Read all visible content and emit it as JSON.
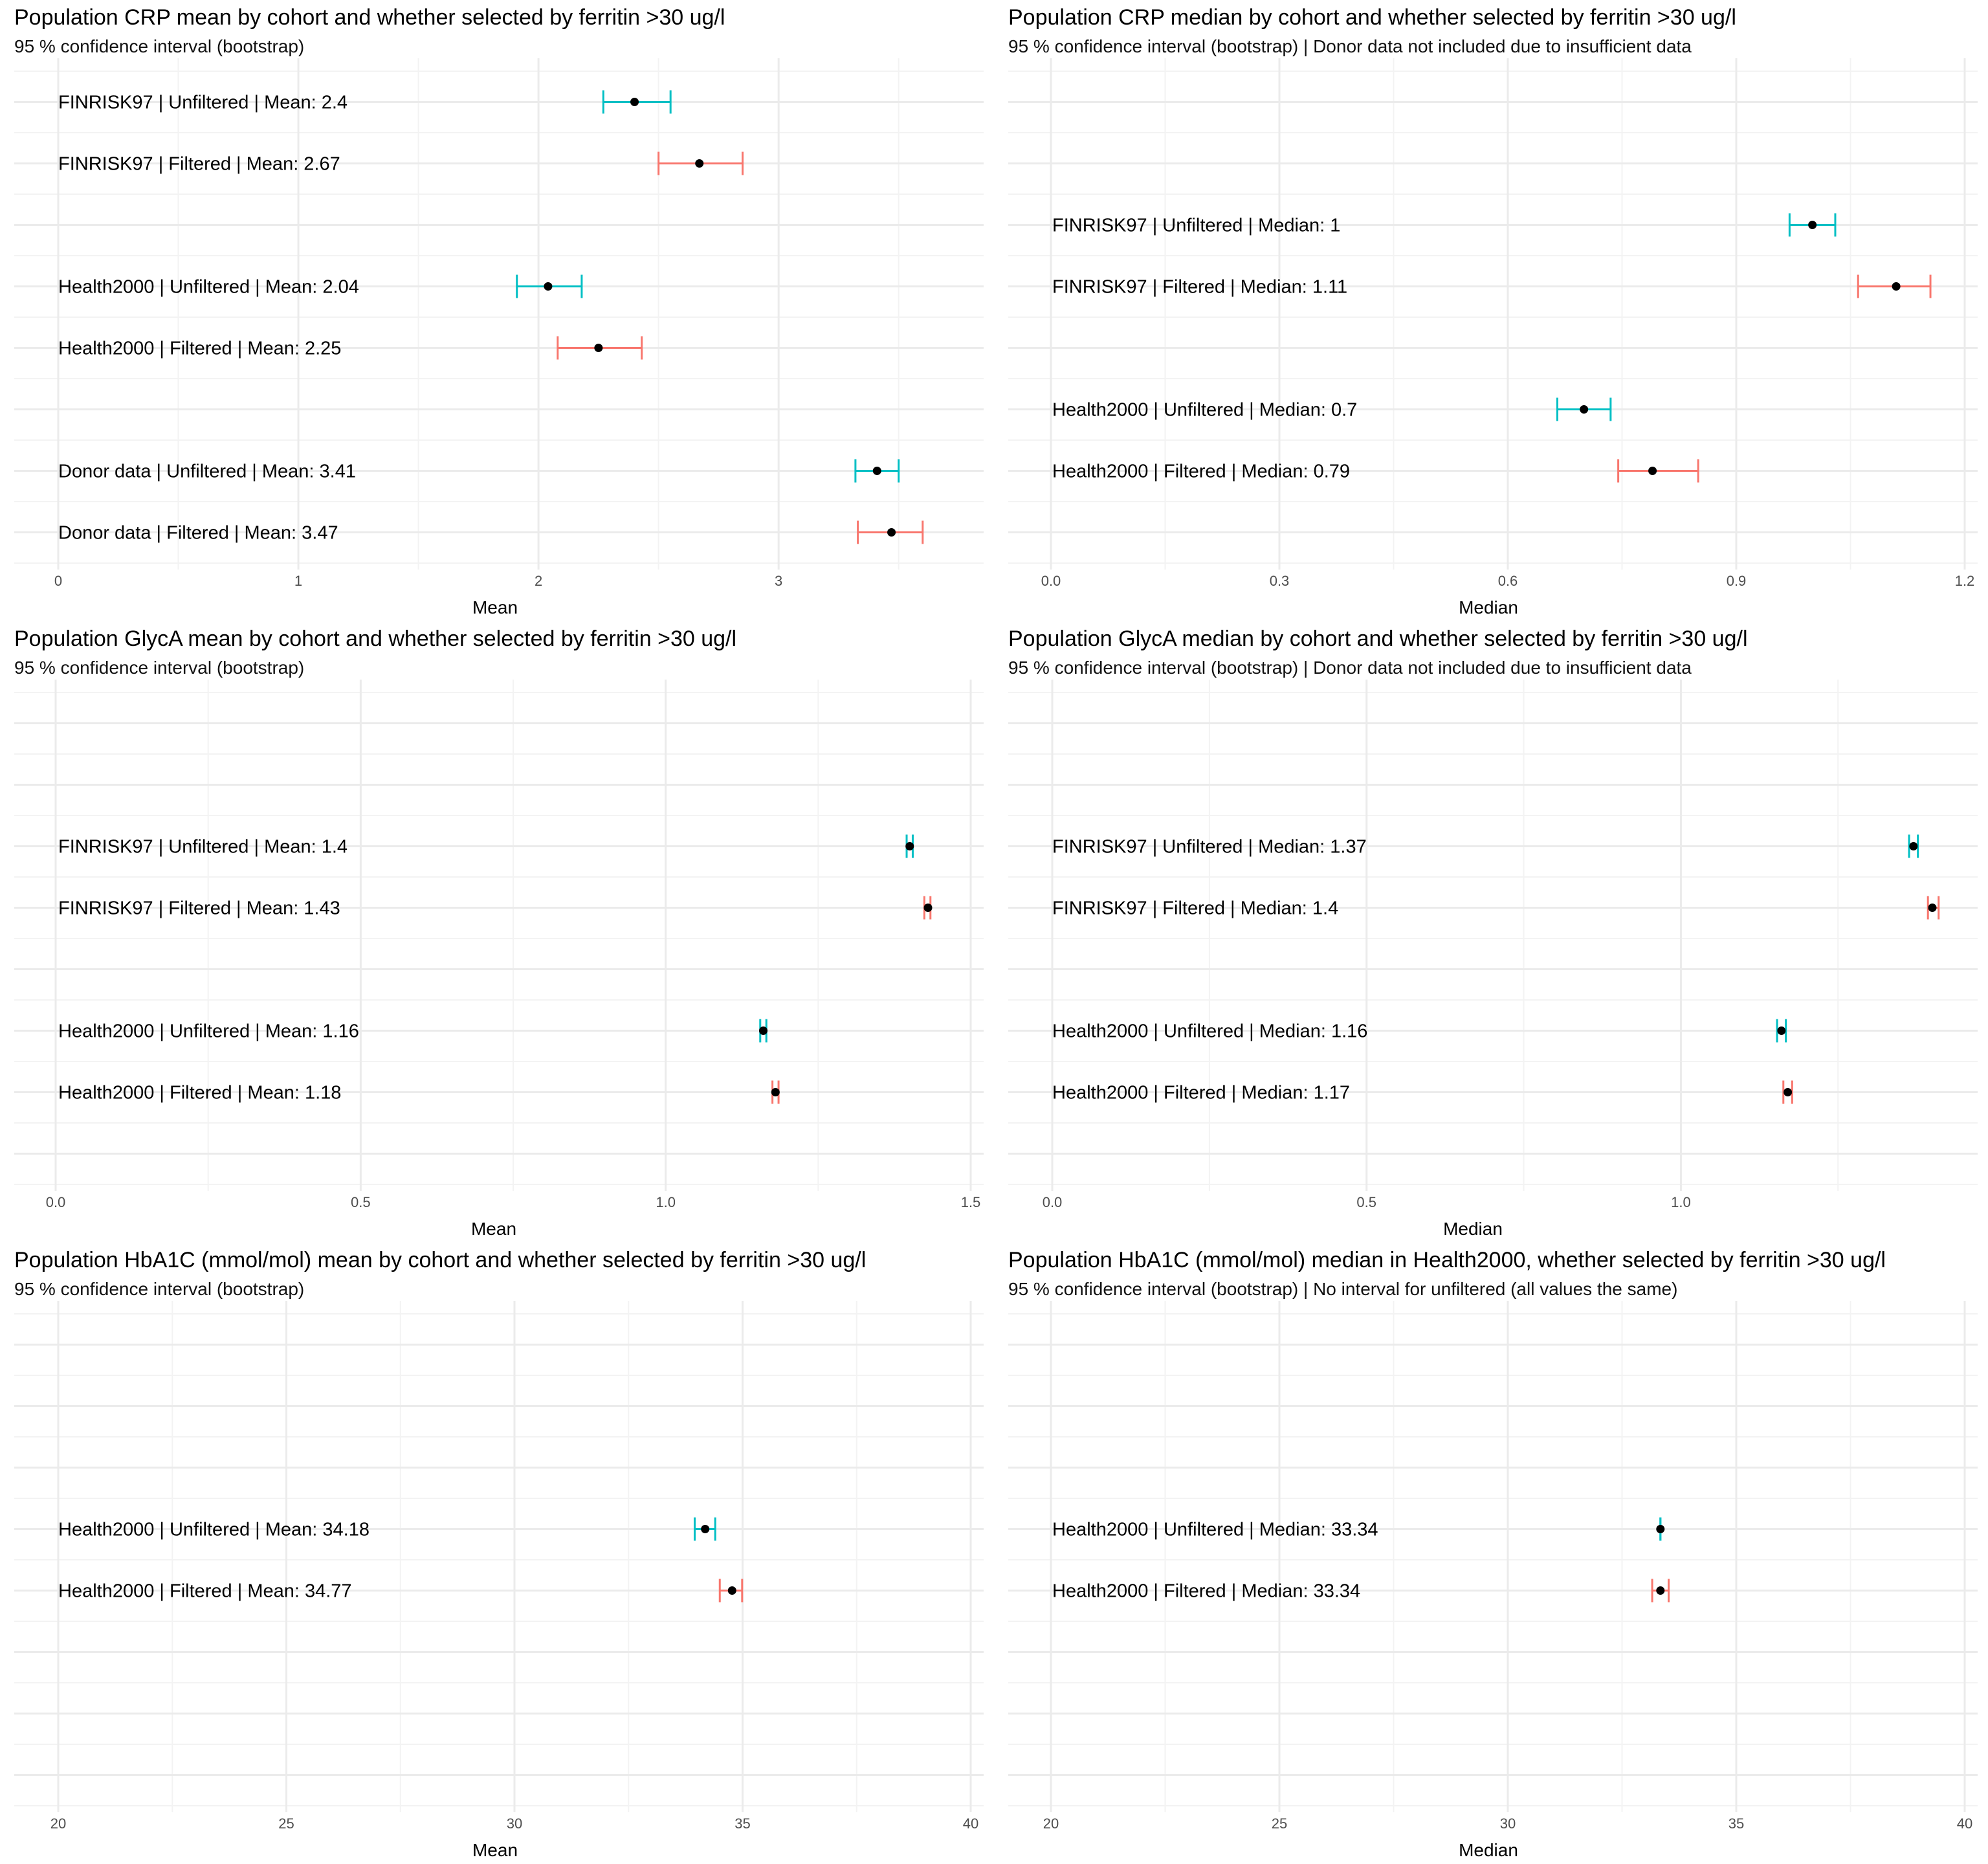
{
  "colors": {
    "unfiltered": "#00BFC4",
    "filtered": "#F8766D",
    "point": "#000000",
    "grid_major": "#EBEBEB",
    "grid_minor": "#F3F3F3"
  },
  "chart_data": [
    {
      "type": "scatter",
      "subtype": "point-range",
      "title": "Population CRP mean by cohort and whether selected by ferritin >30 ug/l",
      "subtitle": "95 % confidence interval (bootstrap)",
      "xlabel": "Mean",
      "xlim": [
        0,
        3.8
      ],
      "xticks": [
        0,
        1,
        2,
        3
      ],
      "xtick_labels": [
        "0",
        "1",
        "2",
        "3"
      ],
      "row_count": 8,
      "points": [
        {
          "row": 1,
          "label": "FINRISK97 | Unfiltered | Mean: 2.4",
          "group": "unfiltered",
          "value": 2.4,
          "low": 2.27,
          "high": 2.55
        },
        {
          "row": 2,
          "label": "FINRISK97 | Filtered | Mean: 2.67",
          "group": "filtered",
          "value": 2.67,
          "low": 2.5,
          "high": 2.85
        },
        {
          "row": 4,
          "label": "Health2000 | Unfiltered | Mean: 2.04",
          "group": "unfiltered",
          "value": 2.04,
          "low": 1.91,
          "high": 2.18
        },
        {
          "row": 5,
          "label": "Health2000 | Filtered | Mean: 2.25",
          "group": "filtered",
          "value": 2.25,
          "low": 2.08,
          "high": 2.43
        },
        {
          "row": 7,
          "label": "Donor data | Unfiltered | Mean: 3.41",
          "group": "unfiltered",
          "value": 3.41,
          "low": 3.32,
          "high": 3.5
        },
        {
          "row": 8,
          "label": "Donor data | Filtered | Mean: 3.47",
          "group": "filtered",
          "value": 3.47,
          "low": 3.33,
          "high": 3.6
        }
      ]
    },
    {
      "type": "scatter",
      "subtype": "point-range",
      "title": "Population CRP median by cohort and whether selected by ferritin >30 ug/l",
      "subtitle": "95 % confidence interval (bootstrap) | Donor data not included due to insufficient data",
      "xlabel": "Median",
      "xlim": [
        0,
        1.2
      ],
      "xticks": [
        0,
        0.3,
        0.6,
        0.9,
        1.2
      ],
      "xtick_labels": [
        "0.0",
        "0.3",
        "0.6",
        "0.9",
        "1.2"
      ],
      "row_count": 8,
      "points": [
        {
          "row": 3,
          "label": "FINRISK97 | Unfiltered | Median: 1",
          "group": "unfiltered",
          "value": 1.0,
          "low": 0.97,
          "high": 1.03
        },
        {
          "row": 4,
          "label": "FINRISK97 | Filtered | Median: 1.11",
          "group": "filtered",
          "value": 1.11,
          "low": 1.06,
          "high": 1.155
        },
        {
          "row": 6,
          "label": "Health2000 | Unfiltered | Median: 0.7",
          "group": "unfiltered",
          "value": 0.7,
          "low": 0.665,
          "high": 0.735
        },
        {
          "row": 7,
          "label": "Health2000 | Filtered | Median: 0.79",
          "group": "filtered",
          "value": 0.79,
          "low": 0.745,
          "high": 0.85
        }
      ]
    },
    {
      "type": "scatter",
      "subtype": "point-range",
      "title": "Population GlycA mean by cohort and whether selected by ferritin >30 ug/l",
      "subtitle": "95 % confidence interval (bootstrap)",
      "xlabel": "Mean",
      "xlim": [
        0,
        1.5
      ],
      "xticks": [
        0,
        0.5,
        1.0,
        1.5
      ],
      "xtick_labels": [
        "0.0",
        "0.5",
        "1.0",
        "1.5"
      ],
      "row_count": 8,
      "points": [
        {
          "row": 3,
          "label": "FINRISK97 | Unfiltered | Mean: 1.4",
          "group": "unfiltered",
          "value": 1.4,
          "low": 1.395,
          "high": 1.405
        },
        {
          "row": 4,
          "label": "FINRISK97 | Filtered | Mean: 1.43",
          "group": "filtered",
          "value": 1.43,
          "low": 1.424,
          "high": 1.434
        },
        {
          "row": 6,
          "label": "Health2000 | Unfiltered | Mean: 1.16",
          "group": "unfiltered",
          "value": 1.16,
          "low": 1.155,
          "high": 1.165
        },
        {
          "row": 7,
          "label": "Health2000 | Filtered | Mean: 1.18",
          "group": "filtered",
          "value": 1.18,
          "low": 1.175,
          "high": 1.185
        }
      ]
    },
    {
      "type": "scatter",
      "subtype": "point-range",
      "title": "Population GlycA median by cohort and whether selected by ferritin >30 ug/l",
      "subtitle": "95 % confidence interval (bootstrap) | Donor data not included due to insufficient data",
      "xlabel": "Median",
      "xlim": [
        0,
        1.4
      ],
      "xticks": [
        0,
        0.5,
        1.0
      ],
      "xtick_labels": [
        "0.0",
        "0.5",
        "1.0"
      ],
      "row_count": 8,
      "points": [
        {
          "row": 3,
          "label": "FINRISK97 | Unfiltered | Median: 1.37",
          "group": "unfiltered",
          "value": 1.37,
          "low": 1.363,
          "high": 1.377
        },
        {
          "row": 4,
          "label": "FINRISK97 | Filtered | Median: 1.4",
          "group": "filtered",
          "value": 1.4,
          "low": 1.393,
          "high": 1.41
        },
        {
          "row": 6,
          "label": "Health2000 | Unfiltered | Median: 1.16",
          "group": "unfiltered",
          "value": 1.16,
          "low": 1.153,
          "high": 1.167
        },
        {
          "row": 7,
          "label": "Health2000 | Filtered | Median: 1.17",
          "group": "filtered",
          "value": 1.17,
          "low": 1.163,
          "high": 1.177
        }
      ]
    },
    {
      "type": "scatter",
      "subtype": "point-range",
      "title": "Population HbA1C (mmol/mol) mean by cohort and whether selected by ferritin >30 ug/l",
      "subtitle": "95 % confidence interval (bootstrap)",
      "xlabel": "Mean",
      "xlim": [
        20,
        40
      ],
      "xticks": [
        20,
        25,
        30,
        35,
        40
      ],
      "xtick_labels": [
        "20",
        "25",
        "30",
        "35",
        "40"
      ],
      "row_count": 8,
      "points": [
        {
          "row": 4,
          "label": "Health2000 | Unfiltered | Mean: 34.18",
          "group": "unfiltered",
          "value": 34.18,
          "low": 33.95,
          "high": 34.4
        },
        {
          "row": 5,
          "label": "Health2000 | Filtered | Mean: 34.77",
          "group": "filtered",
          "value": 34.77,
          "low": 34.5,
          "high": 34.99
        }
      ]
    },
    {
      "type": "scatter",
      "subtype": "point-range",
      "title": "Population HbA1C (mmol/mol) median in Health2000, whether selected by ferritin >30 ug/l",
      "subtitle": "95 % confidence interval (bootstrap) | No interval for unfiltered (all values the same)",
      "xlabel": "Median",
      "xlim": [
        20,
        40
      ],
      "xticks": [
        20,
        25,
        30,
        35,
        40
      ],
      "xtick_labels": [
        "20",
        "25",
        "30",
        "35",
        "40"
      ],
      "row_count": 8,
      "points": [
        {
          "row": 4,
          "label": "Health2000 | Unfiltered | Median: 33.34",
          "group": "unfiltered",
          "value": 33.34,
          "low": 33.34,
          "high": 33.34
        },
        {
          "row": 5,
          "label": "Health2000 | Filtered | Median: 33.34",
          "group": "filtered",
          "value": 33.34,
          "low": 33.16,
          "high": 33.52
        }
      ]
    }
  ]
}
